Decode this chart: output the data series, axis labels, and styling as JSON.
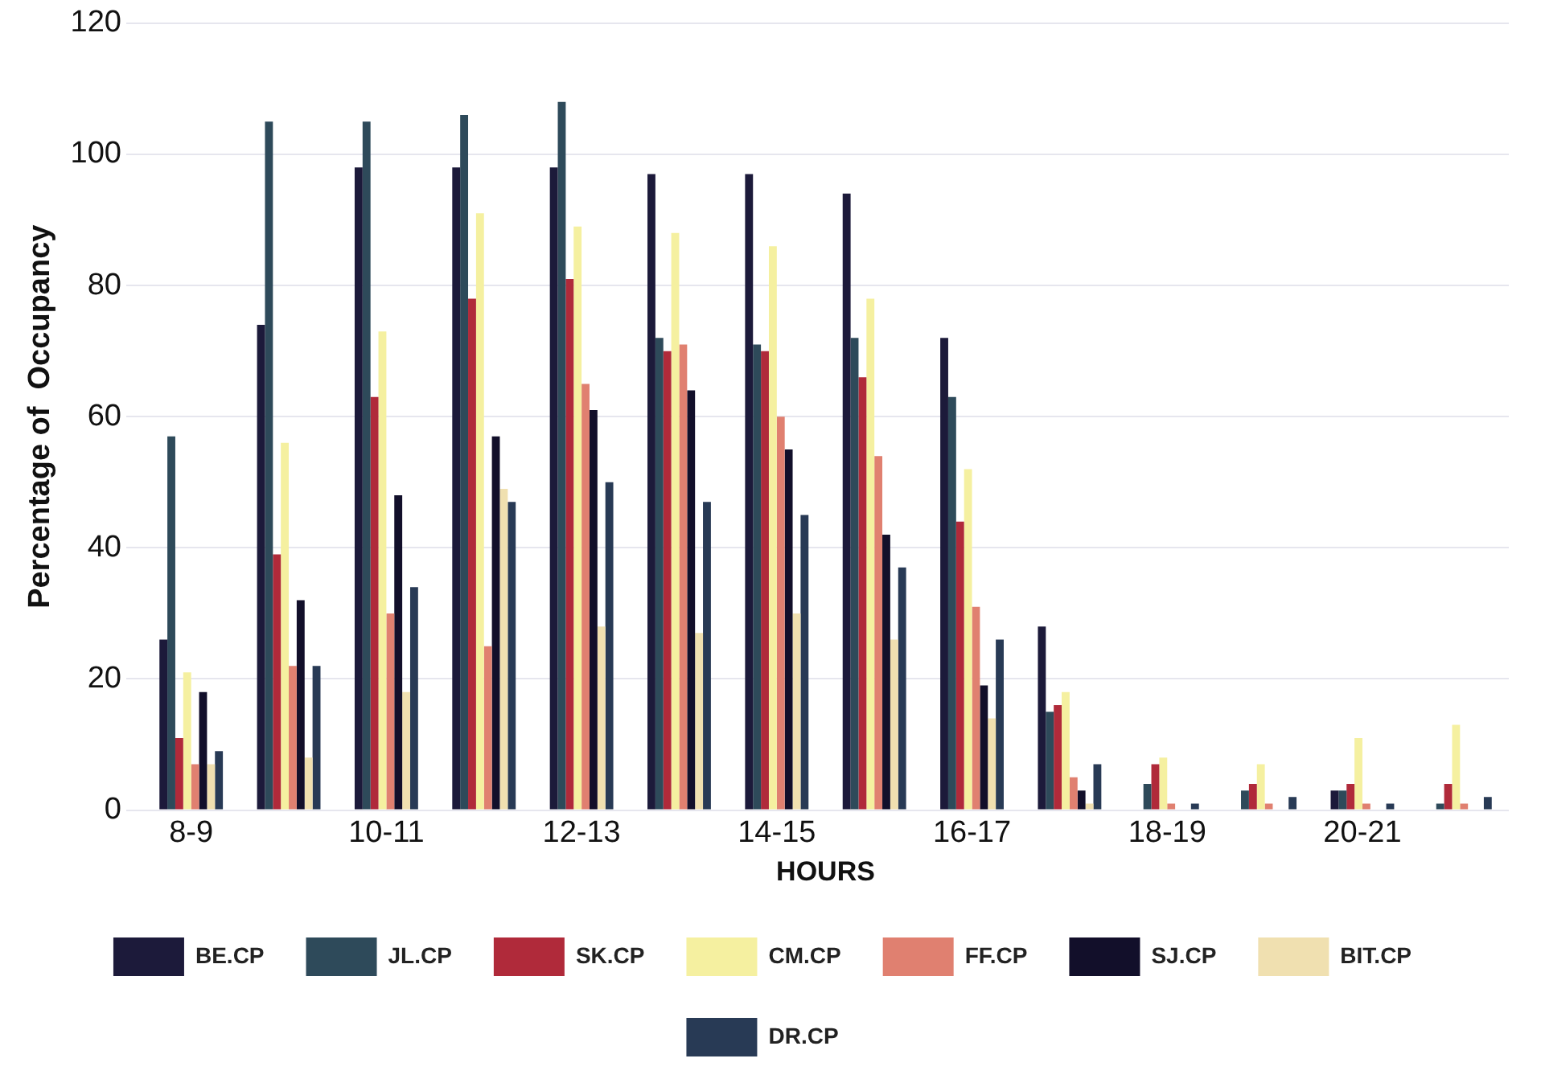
{
  "chart_data": {
    "type": "bar",
    "xlabel": "HOURS",
    "ylabel": "Percentage of  Occupancy",
    "categories": [
      "8-9",
      null,
      "10-11",
      null,
      "12-13",
      null,
      "14-15",
      null,
      "16-17",
      null,
      "18-19",
      null,
      "20-21",
      null
    ],
    "ylim": [
      0,
      120
    ],
    "yticks": [
      0,
      20,
      40,
      60,
      80,
      100,
      120
    ],
    "grid": "y",
    "legend": "bottom",
    "series": [
      {
        "name": "BE.CP",
        "color": "#1c1a3a",
        "values": [
          26,
          74,
          98,
          98,
          98,
          97,
          97,
          94,
          72,
          28,
          0,
          0,
          3,
          0
        ]
      },
      {
        "name": "JL.CP",
        "color": "#2e4a5a",
        "values": [
          57,
          105,
          105,
          106,
          108,
          72,
          71,
          72,
          63,
          15,
          4,
          3,
          3,
          1
        ]
      },
      {
        "name": "SK.CP",
        "color": "#b02a3a",
        "values": [
          11,
          39,
          63,
          78,
          81,
          70,
          70,
          66,
          44,
          16,
          7,
          4,
          4,
          4
        ]
      },
      {
        "name": "CM.CP",
        "color": "#f5f0a0",
        "values": [
          21,
          56,
          73,
          91,
          89,
          88,
          86,
          78,
          52,
          18,
          8,
          7,
          11,
          13
        ]
      },
      {
        "name": "FF.CP",
        "color": "#e08070",
        "values": [
          7,
          22,
          30,
          25,
          65,
          71,
          60,
          54,
          31,
          5,
          1,
          1,
          1,
          1
        ]
      },
      {
        "name": "SJ.CP",
        "color": "#120f2a",
        "values": [
          18,
          32,
          48,
          57,
          61,
          64,
          55,
          42,
          19,
          3,
          0,
          0,
          0,
          0
        ]
      },
      {
        "name": "BIT.CP",
        "color": "#f0e0b0",
        "values": [
          7,
          8,
          18,
          49,
          28,
          27,
          30,
          26,
          14,
          1,
          0,
          0,
          0,
          0
        ]
      },
      {
        "name": "DR.CP",
        "color": "#283a55",
        "values": [
          9,
          22,
          34,
          47,
          50,
          47,
          45,
          37,
          26,
          7,
          1,
          2,
          1,
          2
        ]
      }
    ]
  }
}
